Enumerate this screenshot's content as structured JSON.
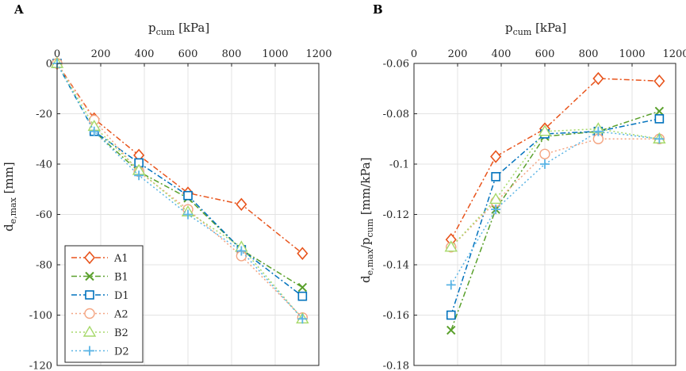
{
  "chart_data": [
    {
      "panel": "A",
      "type": "line",
      "xlabel": {
        "main": "p",
        "sub": "cum",
        "unit": " [kPa]"
      },
      "ylabel": {
        "main": "d",
        "sub": "e,max",
        "unit": " [mm]"
      },
      "xlim": [
        0,
        1200
      ],
      "ylim": [
        -120,
        0
      ],
      "xticks": [
        0,
        200,
        400,
        600,
        800,
        1000,
        1200
      ],
      "yticks": [
        0,
        -20,
        -40,
        -60,
        -80,
        -100,
        -120
      ],
      "yticklabels": [
        "0",
        "-20",
        "-40",
        "-60",
        "-80",
        "-100",
        "-120"
      ],
      "x_axis_position": "top",
      "legend": "bottom-left",
      "series": [
        {
          "name": "A1",
          "color": "#e8541c",
          "marker": "diamond",
          "dash": "7,3,2,3",
          "x": [
            0,
            170,
            375,
            600,
            845,
            1125
          ],
          "y": [
            0,
            -22,
            -36.5,
            -51.5,
            -56,
            -75.5
          ]
        },
        {
          "name": "B1",
          "color": "#5aa02c",
          "marker": "x",
          "dash": "7,3,2,3",
          "x": [
            0,
            170,
            375,
            600,
            845,
            1125
          ],
          "y": [
            0,
            -27,
            -43,
            -53.5,
            -74,
            -89
          ]
        },
        {
          "name": "D1",
          "color": "#0072bd",
          "marker": "square",
          "dash": "7,3,2,3",
          "x": [
            0,
            170,
            375,
            600,
            845,
            1125
          ],
          "y": [
            0,
            -27,
            -39.5,
            -52.5,
            -74,
            -92.5
          ]
        },
        {
          "name": "A2",
          "color": "#f4a582",
          "marker": "circle",
          "dash": "2,3",
          "x": [
            0,
            170,
            375,
            600,
            845,
            1125
          ],
          "y": [
            0,
            -22.5,
            -43,
            -58,
            -76.5,
            -101
          ]
        },
        {
          "name": "B2",
          "color": "#a6d96a",
          "marker": "triangle",
          "dash": "2,3",
          "x": [
            0,
            170,
            375,
            600,
            845,
            1125
          ],
          "y": [
            0,
            -25,
            -42.5,
            -59,
            -73,
            -101.5
          ]
        },
        {
          "name": "D2",
          "color": "#5ab4e5",
          "marker": "plus",
          "dash": "2,3",
          "x": [
            0,
            170,
            375,
            600,
            845,
            1125
          ],
          "y": [
            0,
            -27,
            -44.5,
            -60,
            -74.5,
            -101.5
          ]
        }
      ]
    },
    {
      "panel": "B",
      "type": "line",
      "xlabel": {
        "main": "p",
        "sub": "cum",
        "unit": " [kPa]"
      },
      "ylabel": {
        "main": "d",
        "sub": "e,max",
        "unit": "/p",
        "sub2": "cum",
        "unit2": " [mm/kPa]"
      },
      "xlim": [
        0,
        1200
      ],
      "ylim": [
        -0.18,
        -0.06
      ],
      "xticks": [
        0,
        200,
        400,
        600,
        800,
        1000,
        1200
      ],
      "yticks": [
        -0.06,
        -0.08,
        -0.1,
        -0.12,
        -0.14,
        -0.16,
        -0.18
      ],
      "yticklabels": [
        "-0.06",
        "-0.08",
        "-0.1",
        "-0.12",
        "-0.14",
        "-0.16",
        "-0.18"
      ],
      "x_axis_position": "top",
      "series": [
        {
          "name": "A1",
          "color": "#e8541c",
          "marker": "diamond",
          "dash": "7,3,2,3",
          "x": [
            170,
            375,
            600,
            845,
            1125
          ],
          "y": [
            -0.13,
            -0.097,
            -0.086,
            -0.066,
            -0.067
          ]
        },
        {
          "name": "B1",
          "color": "#5aa02c",
          "marker": "x",
          "dash": "7,3,2,3",
          "x": [
            170,
            375,
            600,
            845,
            1125
          ],
          "y": [
            -0.166,
            -0.118,
            -0.089,
            -0.087,
            -0.079
          ]
        },
        {
          "name": "D1",
          "color": "#0072bd",
          "marker": "square",
          "dash": "7,3,2,3",
          "x": [
            170,
            375,
            600,
            845,
            1125
          ],
          "y": [
            -0.16,
            -0.105,
            -0.088,
            -0.087,
            -0.082
          ]
        },
        {
          "name": "A2",
          "color": "#f4a582",
          "marker": "circle",
          "dash": "2,3",
          "x": [
            170,
            375,
            600,
            845,
            1125
          ],
          "y": [
            -0.133,
            -0.115,
            -0.096,
            -0.09,
            -0.09
          ]
        },
        {
          "name": "B2",
          "color": "#a6d96a",
          "marker": "triangle",
          "dash": "2,3",
          "x": [
            170,
            375,
            600,
            845,
            1125
          ],
          "y": [
            -0.133,
            -0.114,
            -0.087,
            -0.086,
            -0.09
          ]
        },
        {
          "name": "D2",
          "color": "#5ab4e5",
          "marker": "plus",
          "dash": "2,3",
          "x": [
            170,
            375,
            600,
            845,
            1125
          ],
          "y": [
            -0.148,
            -0.118,
            -0.1,
            -0.087,
            -0.09
          ]
        }
      ]
    }
  ]
}
